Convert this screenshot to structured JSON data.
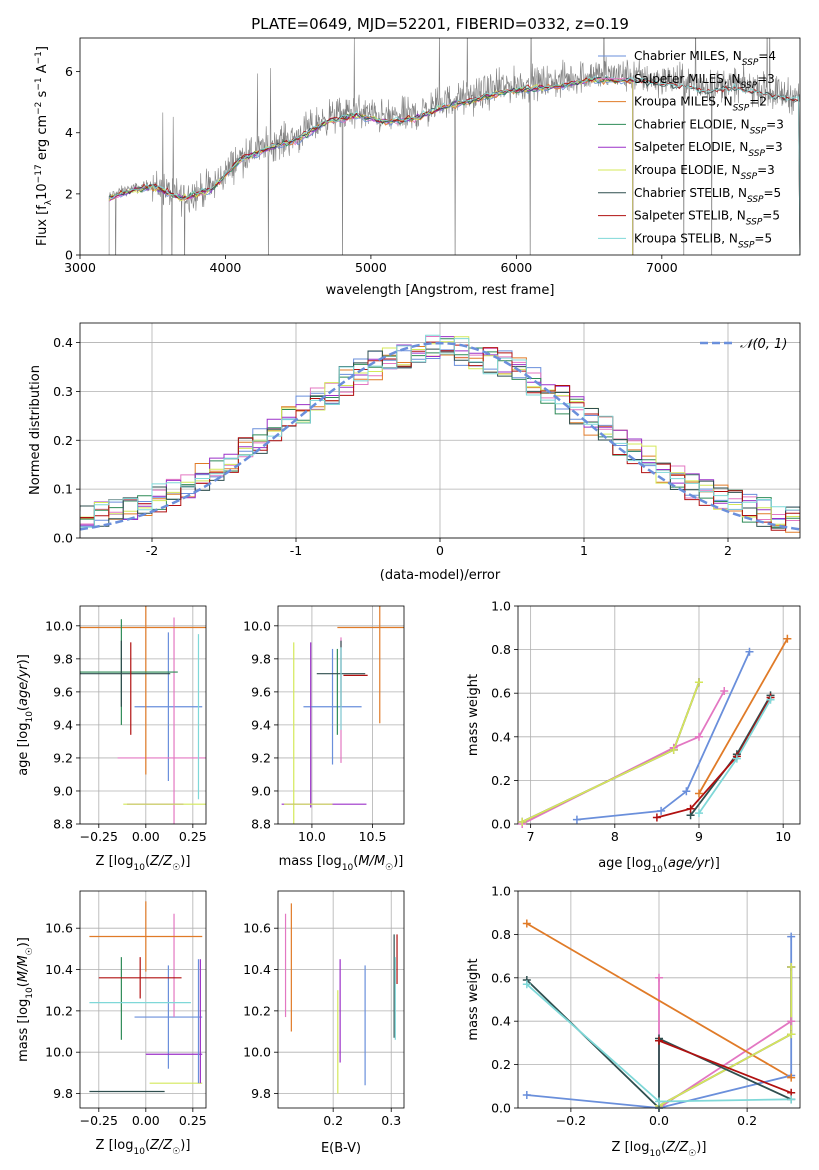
{
  "title": "PLATE=0649, MJD=52201, FIBERID=0332, z=0.19",
  "colors": {
    "Chabrier MILES": "#6a8fdb",
    "Salpeter MILES": "#e377c2",
    "Kroupa MILES": "#e07b28",
    "Chabrier ELODIE": "#2e8b57",
    "Salpeter ELODIE": "#9b30c8",
    "Kroupa ELODIE": "#d4e85a",
    "Chabrier STELIB": "#2f4f4f",
    "Salpeter STELIB": "#b01010",
    "Kroupa STELIB": "#7fd8d8",
    "data": "#808080",
    "normal": "#6a8fdb"
  },
  "chart_data": [
    {
      "id": "spectrum",
      "type": "line",
      "title": "PLATE=0649, MJD=52201, FIBERID=0332, z=0.19",
      "xlabel": "wavelength [Angstrom, rest frame]",
      "ylabel": "Flux [f_λ10^-17 erg cm^-2 s^-1 A^-1]",
      "xlim": [
        3000,
        7950
      ],
      "ylim": [
        0,
        7.1
      ],
      "xticks": [
        3000,
        4000,
        5000,
        6000,
        7000
      ],
      "yticks": [
        0,
        2,
        4,
        6
      ],
      "grid": false,
      "legend_position": "right",
      "legend": [
        {
          "name": "Chabrier MILES",
          "nssp": "4"
        },
        {
          "name": "Salpeter MILES",
          "nssp": "3"
        },
        {
          "name": "Kroupa MILES",
          "nssp": "2"
        },
        {
          "name": "Chabrier ELODIE",
          "nssp": "3"
        },
        {
          "name": "Salpeter ELODIE",
          "nssp": "3"
        },
        {
          "name": "Kroupa ELODIE",
          "nssp": "3"
        },
        {
          "name": "Chabrier STELIB",
          "nssp": "5"
        },
        {
          "name": "Salpeter STELIB",
          "nssp": "5"
        },
        {
          "name": "Kroupa STELIB",
          "nssp": "5"
        }
      ],
      "data_trend": {
        "x": [
          3200,
          3300,
          3500,
          3700,
          3900,
          4100,
          4300,
          4500,
          4700,
          4900,
          5100,
          5300,
          5500,
          5700,
          5900,
          6100,
          6300,
          6500,
          6700,
          6900,
          7100,
          7300,
          7500,
          7700,
          7900
        ],
        "y": [
          1.9,
          2.1,
          2.3,
          1.9,
          2.2,
          3.2,
          3.6,
          3.9,
          4.5,
          4.7,
          4.5,
          4.6,
          5.0,
          5.2,
          5.5,
          5.6,
          5.7,
          5.9,
          5.9,
          5.8,
          5.7,
          5.5,
          5.6,
          5.4,
          5.2
        ],
        "model_cutoffs": {
          "MILES": 6800,
          "ELODIE": 6800,
          "STELIB": 7950
        }
      }
    },
    {
      "id": "residuals",
      "type": "histogram",
      "xlabel": "(data-model)/error",
      "ylabel": "Normed distribution",
      "xlim": [
        -2.5,
        2.5
      ],
      "ylim": [
        0,
        0.44
      ],
      "xticks": [
        -2,
        -1,
        0,
        1,
        2
      ],
      "yticks": [
        0,
        0.1,
        0.2,
        0.3,
        0.4
      ],
      "grid": true,
      "legend_position": "top-right",
      "normal_label": "𝒩(0, 1)",
      "bin_width": 0.1
    },
    {
      "id": "age-vs-Z",
      "type": "errorbar",
      "xlabel": "Z [log10(Z/Z☉)]",
      "ylabel": "age [log10(age/yr)]",
      "xlim": [
        -0.35,
        0.32
      ],
      "ylim": [
        8.8,
        10.12
      ],
      "xticks": [
        -0.25,
        0,
        0.25
      ],
      "xtick_labels": [
        "−0.25",
        "0.00",
        "0.25"
      ],
      "yticks": [
        8.8,
        9.0,
        9.2,
        9.4,
        9.6,
        9.8,
        10.0
      ],
      "grid": true,
      "points": [
        {
          "x": 0.12,
          "xerr": 0.18,
          "y": 9.51,
          "yerr": 0.45,
          "series": "Chabrier MILES"
        },
        {
          "x": 0.15,
          "xerr": 0.3,
          "y": 9.2,
          "yerr": 0.85,
          "series": "Salpeter MILES"
        },
        {
          "x": 0.0,
          "xerr": 0.45,
          "y": 9.99,
          "yerr": 0.89,
          "series": "Kroupa MILES"
        },
        {
          "x": -0.13,
          "xerr": 0.3,
          "y": 9.72,
          "yerr": 0.32,
          "series": "Chabrier ELODIE"
        },
        {
          "x": 0.05,
          "xerr": 0.15,
          "y": 8.92,
          "yerr": 0.0,
          "series": "Salpeter ELODIE"
        },
        {
          "x": 0.1,
          "xerr": 0.22,
          "y": 8.92,
          "yerr": 0.0,
          "series": "Kroupa ELODIE"
        },
        {
          "x": -0.13,
          "xerr": 0.26,
          "y": 9.71,
          "yerr": 0.2,
          "series": "Chabrier STELIB"
        },
        {
          "x": -0.08,
          "xerr": 0.0,
          "y": 9.62,
          "yerr": 0.28,
          "series": "Salpeter STELIB"
        },
        {
          "x": 0.28,
          "xerr": 0.0,
          "y": 9.45,
          "yerr": 0.5,
          "series": "Kroupa STELIB"
        }
      ]
    },
    {
      "id": "age-vs-mass",
      "type": "errorbar",
      "xlabel": "mass [log10(M/M☉)]",
      "ylabel": "",
      "xlim": [
        9.72,
        10.76
      ],
      "ylim": [
        8.8,
        10.12
      ],
      "xticks": [
        10.0,
        10.5
      ],
      "xtick_labels": [
        "10.0",
        "10.5"
      ],
      "yticks": [
        8.8,
        9.0,
        9.2,
        9.4,
        9.6,
        9.8,
        10.0
      ],
      "grid": true,
      "points": [
        {
          "x": 10.17,
          "xerr": 0.24,
          "y": 9.51,
          "yerr": 0.35,
          "series": "Chabrier MILES"
        },
        {
          "x": 10.24,
          "xerr": 0.0,
          "y": 9.55,
          "yerr": 0.38,
          "series": "Salpeter MILES"
        },
        {
          "x": 10.56,
          "xerr": 0.35,
          "y": 9.99,
          "yerr": 0.58,
          "series": "Kroupa MILES"
        },
        {
          "x": 10.21,
          "xerr": 0.0,
          "y": 9.6,
          "yerr": 0.26,
          "series": "Chabrier ELODIE"
        },
        {
          "x": 9.99,
          "xerr": 0.0,
          "y": 9.4,
          "yerr": 0.5,
          "series": "Salpeter ELODIE"
        },
        {
          "x": 9.85,
          "xerr": 0.0,
          "y": 9.3,
          "yerr": 0.6,
          "series": "Kroupa ELODIE"
        },
        {
          "x": 10.24,
          "xerr": 0.2,
          "y": 9.71,
          "yerr": 0.2,
          "series": "Chabrier STELIB"
        },
        {
          "x": 10.36,
          "xerr": 0.1,
          "y": 9.7,
          "yerr": 0.0,
          "series": "Salpeter STELIB"
        },
        {
          "x": 10.24,
          "xerr": 0.0,
          "y": 9.62,
          "yerr": 0.25,
          "series": "Kroupa STELIB"
        },
        {
          "x": 10.1,
          "xerr": 0.35,
          "y": 8.92,
          "yerr": 0.0,
          "series": "Salpeter ELODIE"
        },
        {
          "x": 9.97,
          "xerr": 0.2,
          "y": 8.92,
          "yerr": 0.0,
          "series": "Kroupa ELODIE"
        }
      ]
    },
    {
      "id": "weight-vs-age",
      "type": "line",
      "xlabel": "age [log10(age/yr)]",
      "ylabel": "mass weight",
      "xlim": [
        6.85,
        10.2
      ],
      "ylim": [
        0,
        1.0
      ],
      "xticks": [
        7,
        8,
        9,
        10
      ],
      "yticks": [
        0,
        0.2,
        0.4,
        0.6,
        0.8,
        1.0
      ],
      "grid": true,
      "series": [
        {
          "name": "Chabrier MILES",
          "x": [
            7.55,
            8.55,
            8.85,
            9.6
          ],
          "y": [
            0.02,
            0.06,
            0.15,
            0.79
          ]
        },
        {
          "name": "Salpeter MILES",
          "x": [
            6.9,
            8.7,
            9.0,
            9.3
          ],
          "y": [
            0.0,
            0.35,
            0.4,
            0.61
          ]
        },
        {
          "name": "Kroupa MILES",
          "x": [
            9.0,
            10.05
          ],
          "y": [
            0.14,
            0.85
          ]
        },
        {
          "name": "Chabrier ELODIE",
          "x": [
            6.9,
            8.7,
            9.0
          ],
          "y": [
            0.01,
            0.34,
            0.65
          ]
        },
        {
          "name": "Salpeter ELODIE",
          "x": [
            6.9,
            8.7,
            9.0
          ],
          "y": [
            0.01,
            0.34,
            0.65
          ]
        },
        {
          "name": "Kroupa ELODIE",
          "x": [
            6.9,
            8.7,
            9.0
          ],
          "y": [
            0.01,
            0.34,
            0.65
          ]
        },
        {
          "name": "Chabrier STELIB",
          "x": [
            8.9,
            9.45,
            9.85
          ],
          "y": [
            0.04,
            0.32,
            0.59
          ]
        },
        {
          "name": "Salpeter STELIB",
          "x": [
            8.5,
            8.9,
            9.45,
            9.85
          ],
          "y": [
            0.03,
            0.07,
            0.31,
            0.58
          ]
        },
        {
          "name": "Kroupa STELIB",
          "x": [
            9.0,
            9.45,
            9.85
          ],
          "y": [
            0.05,
            0.3,
            0.57
          ]
        }
      ]
    },
    {
      "id": "mass-vs-Z",
      "type": "errorbar",
      "xlabel": "Z [log10(Z/Z☉)]",
      "ylabel": "mass [log10(M/M☉)]",
      "xlim": [
        -0.35,
        0.32
      ],
      "ylim": [
        9.73,
        10.78
      ],
      "xticks": [
        -0.25,
        0,
        0.25
      ],
      "xtick_labels": [
        "−0.25",
        "0.00",
        "0.25"
      ],
      "yticks": [
        9.8,
        10.0,
        10.2,
        10.4,
        10.6
      ],
      "grid": true,
      "points": [
        {
          "x": 0.12,
          "xerr": 0.18,
          "y": 10.17,
          "yerr": 0.25,
          "series": "Chabrier MILES"
        },
        {
          "x": 0.15,
          "xerr": 0.0,
          "y": 10.42,
          "yerr": 0.25,
          "series": "Salpeter MILES"
        },
        {
          "x": 0.0,
          "xerr": 0.3,
          "y": 10.56,
          "yerr": 0.17,
          "series": "Kroupa MILES"
        },
        {
          "x": -0.13,
          "xerr": 0.0,
          "y": 10.26,
          "yerr": 0.2,
          "series": "Chabrier ELODIE"
        },
        {
          "x": 0.15,
          "xerr": 0.15,
          "y": 9.99,
          "yerr": 0.0,
          "series": "Salpeter ELODIE"
        },
        {
          "x": 0.16,
          "xerr": 0.14,
          "y": 9.85,
          "yerr": 0.0,
          "series": "Kroupa ELODIE"
        },
        {
          "x": -0.1,
          "xerr": 0.2,
          "y": 9.81,
          "yerr": 0.0,
          "series": "Chabrier STELIB"
        },
        {
          "x": -0.03,
          "xerr": 0.22,
          "y": 10.36,
          "yerr": 0.1,
          "series": "Salpeter STELIB"
        },
        {
          "x": -0.03,
          "xerr": 0.27,
          "y": 10.24,
          "yerr": 0.0,
          "series": "Kroupa STELIB"
        },
        {
          "x": 0.28,
          "xerr": 0.0,
          "y": 10.15,
          "yerr": 0.3,
          "series": "Chabrier MILES"
        },
        {
          "x": 0.29,
          "xerr": 0.0,
          "y": 10.15,
          "yerr": 0.3,
          "series": "Salpeter ELODIE"
        }
      ]
    },
    {
      "id": "mass-vs-EBV",
      "type": "errorbar",
      "xlabel": "E(B-V)",
      "ylabel": "",
      "xlim": [
        0.105,
        0.322
      ],
      "ylim": [
        9.73,
        10.78
      ],
      "xticks": [
        0.2,
        0.3
      ],
      "xtick_labels": [
        "0.2",
        "0.3"
      ],
      "yticks": [
        9.8,
        10.0,
        10.2,
        10.4,
        10.6
      ],
      "grid": true,
      "points": [
        {
          "x": 0.118,
          "xerr": 0.0,
          "y": 10.42,
          "yerr": 0.25,
          "series": "Salpeter MILES"
        },
        {
          "x": 0.128,
          "xerr": 0.0,
          "y": 10.41,
          "yerr": 0.31,
          "series": "Kroupa MILES"
        },
        {
          "x": 0.208,
          "xerr": 0.0,
          "y": 10.05,
          "yerr": 0.25,
          "series": "Kroupa ELODIE"
        },
        {
          "x": 0.212,
          "xerr": 0.0,
          "y": 10.2,
          "yerr": 0.25,
          "series": "Salpeter ELODIE"
        },
        {
          "x": 0.255,
          "xerr": 0.0,
          "y": 10.13,
          "yerr": 0.29,
          "series": "Chabrier MILES"
        },
        {
          "x": 0.305,
          "xerr": 0.0,
          "y": 10.32,
          "yerr": 0.25,
          "series": "Chabrier STELIB"
        },
        {
          "x": 0.307,
          "xerr": 0.0,
          "y": 10.26,
          "yerr": 0.2,
          "series": "Kroupa STELIB"
        },
        {
          "x": 0.31,
          "xerr": 0.0,
          "y": 10.45,
          "yerr": 0.12,
          "series": "Salpeter STELIB"
        }
      ]
    },
    {
      "id": "weight-vs-Z",
      "type": "line",
      "xlabel": "Z [log10(Z/Z☉)]",
      "ylabel": "mass weight",
      "xlim": [
        -0.32,
        0.32
      ],
      "ylim": [
        0,
        1.0
      ],
      "xticks": [
        -0.2,
        0.0,
        0.2
      ],
      "xtick_labels": [
        "−0.2",
        "0.0",
        "0.2"
      ],
      "yticks": [
        0,
        0.2,
        0.4,
        0.6,
        0.8,
        1.0
      ],
      "grid": true,
      "series": [
        {
          "name": "Chabrier MILES",
          "x": [
            -0.3,
            0.0,
            0.3,
            0.3
          ],
          "y": [
            0.06,
            0.0,
            0.15,
            0.79
          ]
        },
        {
          "name": "Salpeter MILES",
          "x": [
            0.0,
            0.0,
            0.3
          ],
          "y": [
            0.6,
            0.0,
            0.4
          ]
        },
        {
          "name": "Kroupa MILES",
          "x": [
            -0.3,
            0.3
          ],
          "y": [
            0.85,
            0.14
          ]
        },
        {
          "name": "Chabrier ELODIE",
          "x": [
            0.0,
            0.3,
            0.3
          ],
          "y": [
            0.01,
            0.34,
            0.65
          ]
        },
        {
          "name": "Salpeter ELODIE",
          "x": [
            0.0,
            0.3,
            0.3
          ],
          "y": [
            0.01,
            0.34,
            0.65
          ]
        },
        {
          "name": "Kroupa ELODIE",
          "x": [
            0.0,
            0.3,
            0.3
          ],
          "y": [
            0.01,
            0.34,
            0.65
          ]
        },
        {
          "name": "Chabrier STELIB",
          "x": [
            -0.3,
            0.0,
            0.0,
            0.3
          ],
          "y": [
            0.59,
            0.0,
            0.32,
            0.04
          ]
        },
        {
          "name": "Salpeter STELIB",
          "x": [
            0.0,
            0.3
          ],
          "y": [
            0.31,
            0.07
          ]
        },
        {
          "name": "Kroupa STELIB",
          "x": [
            -0.3,
            0.0,
            0.3
          ],
          "y": [
            0.57,
            0.03,
            0.04
          ]
        }
      ]
    }
  ]
}
